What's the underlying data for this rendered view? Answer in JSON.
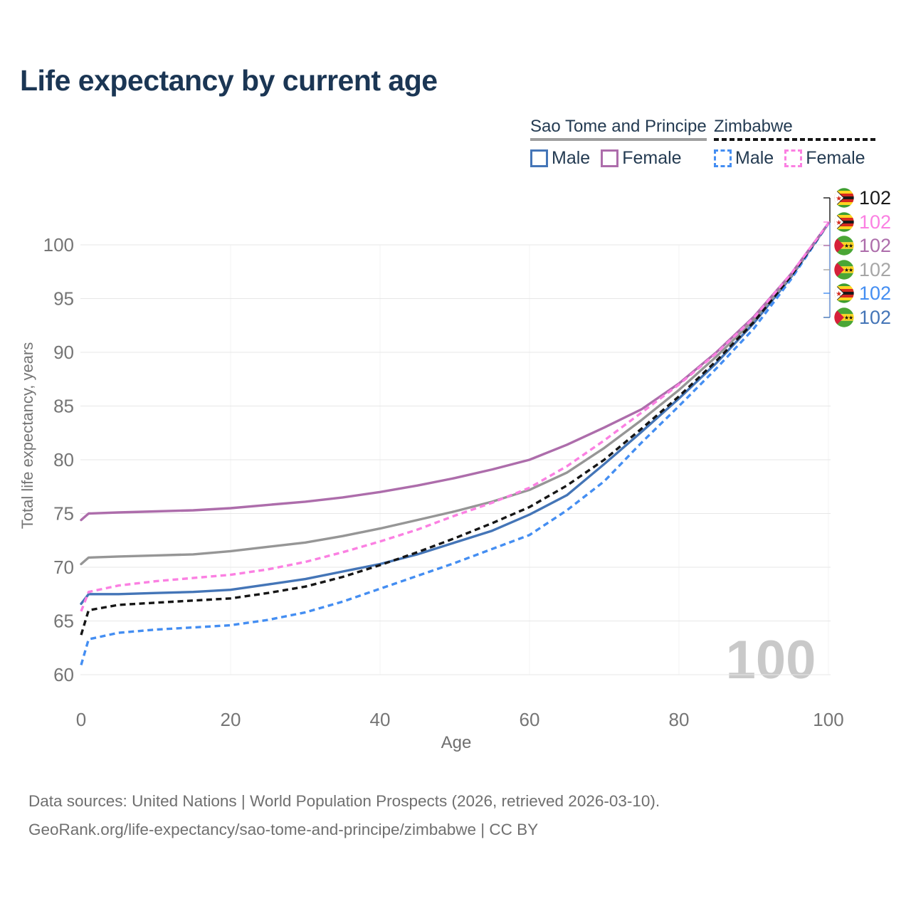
{
  "page": {
    "title": "Life expectancy by current age"
  },
  "legend": {
    "groups": [
      {
        "label": "Sao Tome and Principe",
        "line_style": "solid",
        "underline_color": "#9f9f9f",
        "items": [
          {
            "label": "Male",
            "color": "#4475b7",
            "dashed": false
          },
          {
            "label": "Female",
            "color": "#ad6dab",
            "dashed": false
          }
        ]
      },
      {
        "label": "Zimbabwe",
        "line_style": "dashed",
        "underline_color": "#161616",
        "items": [
          {
            "label": "Male",
            "color": "#448ef2",
            "dashed": true
          },
          {
            "label": "Female",
            "color": "#fb80e2",
            "dashed": true
          }
        ]
      }
    ]
  },
  "chart_data": {
    "type": "line",
    "title": "Life expectancy by current age",
    "xlabel": "Age",
    "ylabel": "Total life expectancy, years",
    "x_ticks": [
      0,
      20,
      40,
      60,
      80,
      100
    ],
    "y_ticks": [
      60,
      65,
      70,
      75,
      80,
      85,
      90,
      95,
      100
    ],
    "xlim": [
      0,
      100
    ],
    "ylim": [
      60,
      104
    ],
    "grid": "horizontal",
    "legend_position": "top-right",
    "watermark": "100",
    "ages": [
      0,
      1,
      5,
      10,
      15,
      20,
      25,
      30,
      35,
      40,
      45,
      50,
      55,
      60,
      65,
      70,
      75,
      80,
      85,
      90,
      95,
      100
    ],
    "series": [
      {
        "id": "stp-female",
        "name": "Sao Tome and Principe Female",
        "country": "Sao Tome and Principe",
        "country_code": "st",
        "sex": "Female",
        "color": "#ad6dab",
        "dashed": false,
        "values": [
          74.4,
          75.0,
          75.1,
          75.2,
          75.3,
          75.5,
          75.8,
          76.1,
          76.5,
          77.0,
          77.6,
          78.3,
          79.1,
          80.0,
          81.4,
          83.0,
          84.7,
          87.1,
          90.0,
          93.3,
          97.3,
          102
        ]
      },
      {
        "id": "stp-all",
        "name": "Sao Tome and Principe Both sexes",
        "country": "Sao Tome and Principe",
        "country_code": "st",
        "sex": "All",
        "color": "#969696",
        "label_color": "#a6a6a6",
        "dashed": false,
        "values": [
          70.3,
          70.9,
          71.0,
          71.1,
          71.2,
          71.5,
          71.9,
          72.3,
          72.9,
          73.6,
          74.4,
          75.2,
          76.1,
          77.2,
          78.8,
          81.1,
          83.7,
          86.5,
          89.6,
          93.0,
          97.1,
          102
        ]
      },
      {
        "id": "stp-male",
        "name": "Sao Tome and Principe Male",
        "country": "Sao Tome and Principe",
        "country_code": "st",
        "sex": "Male",
        "color": "#4475b7",
        "dashed": false,
        "values": [
          66.6,
          67.5,
          67.5,
          67.6,
          67.7,
          67.9,
          68.4,
          68.9,
          69.6,
          70.3,
          71.2,
          72.3,
          73.4,
          74.9,
          76.7,
          79.6,
          82.6,
          85.7,
          89.0,
          92.7,
          97.0,
          102
        ]
      },
      {
        "id": "zwe-female",
        "name": "Zimbabwe Female",
        "country": "Zimbabwe",
        "country_code": "zw",
        "sex": "Female",
        "color": "#fb80e2",
        "dashed": true,
        "values": [
          65.9,
          67.7,
          68.3,
          68.7,
          69.0,
          69.3,
          69.8,
          70.5,
          71.4,
          72.4,
          73.5,
          74.8,
          76.0,
          77.4,
          79.4,
          81.8,
          84.4,
          87.0,
          89.9,
          93.2,
          97.3,
          102
        ]
      },
      {
        "id": "zwe-all",
        "name": "Zimbabwe Both sexes",
        "country": "Zimbabwe",
        "country_code": "zw",
        "sex": "All",
        "color": "#161616",
        "label_color": "#1a1a1a",
        "dashed": true,
        "values": [
          63.7,
          66.0,
          66.5,
          66.7,
          66.9,
          67.1,
          67.6,
          68.2,
          69.1,
          70.2,
          71.4,
          72.7,
          74.1,
          75.6,
          77.6,
          80.0,
          82.9,
          85.9,
          89.2,
          92.8,
          97.1,
          102
        ]
      },
      {
        "id": "zwe-male",
        "name": "Zimbabwe Male",
        "country": "Zimbabwe",
        "country_code": "zw",
        "sex": "Male",
        "color": "#448ef2",
        "dashed": true,
        "values": [
          60.9,
          63.3,
          63.9,
          64.2,
          64.4,
          64.6,
          65.1,
          65.8,
          66.8,
          68.0,
          69.2,
          70.4,
          71.7,
          73.0,
          75.3,
          78.0,
          81.6,
          85.0,
          88.5,
          92.2,
          96.8,
          102
        ]
      }
    ],
    "end_labels": [
      {
        "series": "zwe-all",
        "value": "102"
      },
      {
        "series": "zwe-female",
        "value": "102"
      },
      {
        "series": "stp-female",
        "value": "102"
      },
      {
        "series": "stp-all",
        "value": "102"
      },
      {
        "series": "zwe-male",
        "value": "102"
      },
      {
        "series": "stp-male",
        "value": "102"
      }
    ]
  },
  "footer": {
    "line1": "Data sources: United Nations | World Population Prospects (2026, retrieved 2026-03-10).",
    "line2": "GeoRank.org/life-expectancy/sao-tome-and-principe/zimbabwe | CC BY"
  }
}
